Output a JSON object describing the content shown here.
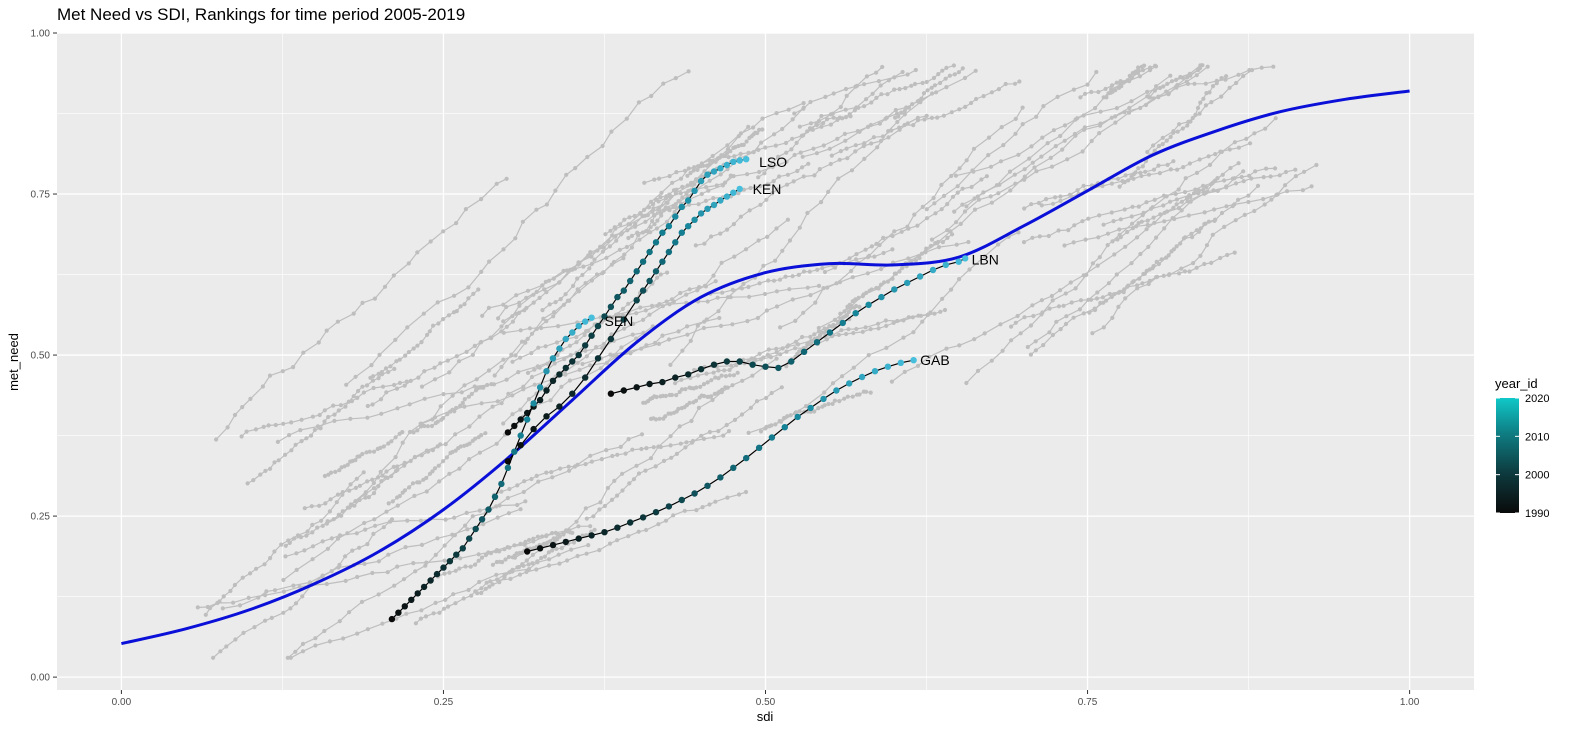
{
  "chart_data": {
    "type": "line",
    "title": "Met Need vs SDI, Rankings for time period 2005-2019",
    "xlabel": "sdi",
    "ylabel": "met_need",
    "xlim": [
      -0.05,
      1.05
    ],
    "ylim": [
      -0.02,
      1.0
    ],
    "x_ticks": [
      0.0,
      0.25,
      0.5,
      0.75,
      1.0
    ],
    "x_tick_labels": [
      "0.00",
      "0.25",
      "0.50",
      "0.75",
      "1.00"
    ],
    "y_ticks": [
      0.0,
      0.25,
      0.5,
      0.75,
      1.0
    ],
    "y_tick_labels": [
      "0.00",
      "0.25",
      "0.50",
      "0.75",
      "1.00"
    ],
    "grid": true,
    "legend": {
      "title": "year_id",
      "placement": "right",
      "type": "colorbar",
      "range": [
        1990,
        2020
      ],
      "breaks": [
        1990,
        2000,
        2010,
        2020
      ],
      "low_color": "#0a0a0a",
      "high_color": "#10c8c8"
    },
    "colors": {
      "background_series": "#bebebe",
      "smooth_curve": "#0a10d8",
      "panel": "#ebebeb",
      "gridline": "#ffffff"
    },
    "smooth_curve": {
      "x": [
        0.0,
        0.05,
        0.1,
        0.15,
        0.2,
        0.25,
        0.3,
        0.35,
        0.4,
        0.45,
        0.5,
        0.55,
        0.6,
        0.65,
        0.7,
        0.75,
        0.8,
        0.85,
        0.9,
        0.95,
        1.0
      ],
      "y": [
        0.052,
        0.075,
        0.105,
        0.145,
        0.195,
        0.26,
        0.34,
        0.43,
        0.52,
        0.59,
        0.628,
        0.642,
        0.64,
        0.652,
        0.7,
        0.755,
        0.81,
        0.848,
        0.878,
        0.897,
        0.91
      ]
    },
    "series": [
      {
        "name": "LSO",
        "x": [
          0.3,
          0.305,
          0.31,
          0.315,
          0.32,
          0.325,
          0.33,
          0.335,
          0.34,
          0.345,
          0.35,
          0.355,
          0.36,
          0.365,
          0.37,
          0.375,
          0.38,
          0.385,
          0.39,
          0.395,
          0.4,
          0.405,
          0.41,
          0.415,
          0.42,
          0.425,
          0.43,
          0.435,
          0.44,
          0.445,
          0.45,
          0.455,
          0.46,
          0.465,
          0.47,
          0.475,
          0.48,
          0.485
        ],
        "y": [
          0.38,
          0.39,
          0.4,
          0.41,
          0.42,
          0.43,
          0.445,
          0.46,
          0.47,
          0.48,
          0.49,
          0.5,
          0.515,
          0.53,
          0.545,
          0.56,
          0.575,
          0.59,
          0.6,
          0.615,
          0.63,
          0.645,
          0.66,
          0.675,
          0.69,
          0.7,
          0.715,
          0.73,
          0.74,
          0.755,
          0.77,
          0.78,
          0.785,
          0.79,
          0.795,
          0.8,
          0.802,
          0.804
        ]
      },
      {
        "name": "KEN",
        "x": [
          0.3,
          0.31,
          0.32,
          0.33,
          0.34,
          0.35,
          0.36,
          0.37,
          0.38,
          0.39,
          0.4,
          0.405,
          0.41,
          0.415,
          0.42,
          0.425,
          0.43,
          0.435,
          0.44,
          0.445,
          0.45,
          0.455,
          0.46,
          0.465,
          0.47,
          0.475,
          0.48
        ],
        "y": [
          0.335,
          0.36,
          0.385,
          0.405,
          0.42,
          0.44,
          0.465,
          0.495,
          0.525,
          0.555,
          0.585,
          0.6,
          0.615,
          0.63,
          0.645,
          0.66,
          0.675,
          0.69,
          0.7,
          0.71,
          0.72,
          0.727,
          0.733,
          0.74,
          0.746,
          0.752,
          0.758
        ]
      },
      {
        "name": "SEN",
        "x": [
          0.21,
          0.215,
          0.22,
          0.225,
          0.23,
          0.235,
          0.24,
          0.245,
          0.25,
          0.255,
          0.26,
          0.265,
          0.27,
          0.275,
          0.28,
          0.285,
          0.29,
          0.295,
          0.3,
          0.305,
          0.31,
          0.315,
          0.32,
          0.325,
          0.33,
          0.335,
          0.34,
          0.345,
          0.35,
          0.355,
          0.36,
          0.365
        ],
        "y": [
          0.09,
          0.1,
          0.11,
          0.12,
          0.13,
          0.14,
          0.15,
          0.16,
          0.17,
          0.18,
          0.19,
          0.2,
          0.215,
          0.23,
          0.245,
          0.26,
          0.28,
          0.3,
          0.325,
          0.35,
          0.375,
          0.4,
          0.425,
          0.45,
          0.475,
          0.495,
          0.51,
          0.525,
          0.535,
          0.545,
          0.552,
          0.558
        ]
      },
      {
        "name": "LBN",
        "x": [
          0.38,
          0.39,
          0.4,
          0.41,
          0.42,
          0.43,
          0.44,
          0.45,
          0.46,
          0.47,
          0.48,
          0.49,
          0.5,
          0.51,
          0.52,
          0.53,
          0.54,
          0.55,
          0.56,
          0.57,
          0.58,
          0.59,
          0.6,
          0.61,
          0.62,
          0.63,
          0.64,
          0.65,
          0.655
        ],
        "y": [
          0.44,
          0.445,
          0.45,
          0.455,
          0.458,
          0.465,
          0.47,
          0.478,
          0.485,
          0.49,
          0.49,
          0.485,
          0.482,
          0.48,
          0.49,
          0.505,
          0.52,
          0.535,
          0.55,
          0.565,
          0.578,
          0.59,
          0.602,
          0.612,
          0.622,
          0.632,
          0.64,
          0.645,
          0.65
        ]
      },
      {
        "name": "GAB",
        "x": [
          0.315,
          0.325,
          0.335,
          0.345,
          0.355,
          0.365,
          0.375,
          0.385,
          0.395,
          0.405,
          0.415,
          0.425,
          0.435,
          0.445,
          0.455,
          0.465,
          0.475,
          0.485,
          0.495,
          0.505,
          0.515,
          0.525,
          0.535,
          0.545,
          0.555,
          0.565,
          0.575,
          0.585,
          0.595,
          0.605,
          0.615
        ],
        "y": [
          0.195,
          0.2,
          0.205,
          0.21,
          0.215,
          0.22,
          0.225,
          0.232,
          0.24,
          0.248,
          0.256,
          0.265,
          0.275,
          0.285,
          0.297,
          0.31,
          0.325,
          0.34,
          0.356,
          0.372,
          0.388,
          0.404,
          0.418,
          0.432,
          0.445,
          0.456,
          0.466,
          0.475,
          0.482,
          0.488,
          0.492
        ]
      }
    ],
    "labels": [
      {
        "text": "LSO",
        "x": 0.495,
        "y": 0.8
      },
      {
        "text": "KEN",
        "x": 0.49,
        "y": 0.758
      },
      {
        "text": "SEN",
        "x": 0.375,
        "y": 0.553
      },
      {
        "text": "LBN",
        "x": 0.66,
        "y": 0.648
      },
      {
        "text": "GAB",
        "x": 0.62,
        "y": 0.492
      }
    ]
  }
}
